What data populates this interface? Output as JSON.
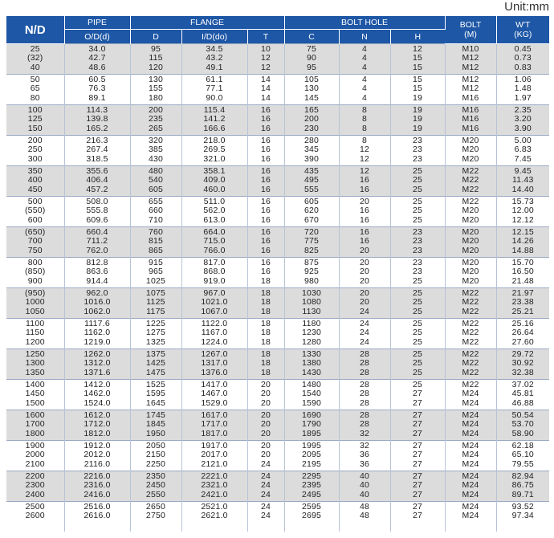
{
  "unit_label": "Unit:mm",
  "header": {
    "nd": "N/D",
    "pipe": "PIPE",
    "flange": "FLANGE",
    "bolt_hole": "BOLT HOLE",
    "bolt": "BOLT\n(M)",
    "weight": "W'T\n(KG)",
    "od": "O/D(d)",
    "d": "D",
    "id": "I/D(do)",
    "t": "T",
    "c": "C",
    "n": "N",
    "h": "H"
  },
  "groups": [
    {
      "nd": "25\n(32)\n40",
      "od": "34.0\n42.7\n48.6",
      "D": "95\n115\n120",
      "id": "34.5\n43.2\n49.1",
      "T": "10\n12\n12",
      "C": "75\n90\n95",
      "N": "4\n4\n4",
      "H": "12\n15\n15",
      "bolt": "M10\nM12\nM12",
      "wt": "0.45\n0.73\n0.83"
    },
    {
      "nd": "50\n65\n80",
      "od": "60.5\n76.3\n89.1",
      "D": "130\n155\n180",
      "id": "61.1\n77.1\n90.0",
      "T": "14\n14\n14",
      "C": "105\n130\n145",
      "N": "4\n4\n4",
      "H": "15\n15\n19",
      "bolt": "M12\nM12\nM16",
      "wt": "1.06\n1.48\n1.97"
    },
    {
      "nd": "100\n125\n150",
      "od": "114.3\n139.8\n165.2",
      "D": "200\n235\n265",
      "id": "115.4\n141.2\n166.6",
      "T": "16\n16\n16",
      "C": "165\n200\n230",
      "N": "8\n8\n8",
      "H": "19\n19\n19",
      "bolt": "M16\nM16\nM16",
      "wt": "2.35\n3.20\n3.90"
    },
    {
      "nd": "200\n250\n300",
      "od": "216.3\n267.4\n318.5",
      "D": "320\n385\n430",
      "id": "218.0\n269.5\n321.0",
      "T": "16\n16\n16",
      "C": "280\n345\n390",
      "N": "8\n12\n12",
      "H": "23\n23\n23",
      "bolt": "M20\nM20\nM20",
      "wt": "5.00\n6.83\n7.45"
    },
    {
      "nd": "350\n400\n450",
      "od": "355.6\n406.4\n457.2",
      "D": "480\n540\n605",
      "id": "358.1\n409.0\n460.0",
      "T": "16\n16\n16",
      "C": "435\n495\n555",
      "N": "12\n16\n16",
      "H": "25\n25\n25",
      "bolt": "M22\nM22\nM22",
      "wt": "9.45\n11.43\n14.40"
    },
    {
      "nd": "500\n(550)\n600",
      "od": "508.0\n555.8\n609.6",
      "D": "655\n660\n710",
      "id": "511.0\n562.0\n613.0",
      "T": "16\n16\n16",
      "C": "605\n620\n670",
      "N": "20\n16\n16",
      "H": "25\n25\n25",
      "bolt": "M22\nM20\nM20",
      "wt": "15.73\n12.00\n12.12"
    },
    {
      "nd": "(650)\n700\n750",
      "od": "660.4\n711.2\n762.0",
      "D": "760\n815\n865",
      "id": "664.0\n715.0\n766.0",
      "T": "16\n16\n16",
      "C": "720\n775\n825",
      "N": "16\n16\n20",
      "H": "23\n23\n23",
      "bolt": "M20\nM20\nM20",
      "wt": "12.15\n14.26\n14.88"
    },
    {
      "nd": "800\n(850)\n900",
      "od": "812.8\n863.6\n914.4",
      "D": "915\n965\n1025",
      "id": "817.0\n868.0\n919.0",
      "T": "16\n16\n18",
      "C": "875\n925\n980",
      "N": "20\n20\n20",
      "H": "23\n23\n25",
      "bolt": "M20\nM20\nM20",
      "wt": "15.70\n16.50\n21.48"
    },
    {
      "nd": "(950)\n1000\n1050",
      "od": "962.0\n1016.0\n1062.0",
      "D": "1075\n1125\n1175",
      "id": "967.0\n1021.0\n1067.0",
      "T": "18\n18\n18",
      "C": "1030\n1080\n1130",
      "N": "20\n20\n24",
      "H": "25\n25\n25",
      "bolt": "M22\nM22\nM22",
      "wt": "21.97\n23.38\n25.21"
    },
    {
      "nd": "1100\n1150\n1200",
      "od": "1117.6\n1162.0\n1219.0",
      "D": "1225\n1275\n1325",
      "id": "1122.0\n1167.0\n1224.0",
      "T": "18\n18\n18",
      "C": "1180\n1230\n1280",
      "N": "24\n24\n24",
      "H": "25\n25\n25",
      "bolt": "M22\nM22\nM22",
      "wt": "25.16\n26.64\n27.60"
    },
    {
      "nd": "1250\n1300\n1350",
      "od": "1262.0\n1312.0\n1371.6",
      "D": "1375\n1425\n1475",
      "id": "1267.0\n1317.0\n1376.0",
      "T": "18\n18\n18",
      "C": "1330\n1380\n1430",
      "N": "28\n28\n28",
      "H": "25\n25\n25",
      "bolt": "M22\nM22\nM22",
      "wt": "29.72\n30.92\n32.38"
    },
    {
      "nd": "1400\n1450\n1500",
      "od": "1412.0\n1462.0\n1524.0",
      "D": "1525\n1595\n1645",
      "id": "1417.0\n1467.0\n1529.0",
      "T": "20\n20\n20",
      "C": "1480\n1540\n1590",
      "N": "28\n28\n28",
      "H": "25\n27\n27",
      "bolt": "M22\nM24\nM24",
      "wt": "37.02\n45.81\n46.88"
    },
    {
      "nd": "1600\n1700\n1800",
      "od": "1612.0\n1712.0\n1812.0",
      "D": "1745\n1845\n1950",
      "id": "1617.0\n1717.0\n1817.0",
      "T": "20\n20\n20",
      "C": "1690\n1790\n1895",
      "N": "28\n28\n32",
      "H": "27\n27\n27",
      "bolt": "M24\nM24\nM24",
      "wt": "50.54\n53.70\n58.90"
    },
    {
      "nd": "1900\n2000\n2100",
      "od": "1912.0\n2012.0\n2116.0",
      "D": "2050\n2150\n2250",
      "id": "1917.0\n2017.0\n2121.0",
      "T": "20\n20\n24",
      "C": "1995\n2095\n2195",
      "N": "32\n36\n36",
      "H": "27\n27\n27",
      "bolt": "M24\nM24\nM24",
      "wt": "62.18\n65.10\n79.55"
    },
    {
      "nd": "2200\n2300\n2400",
      "od": "2216.0\n2316.0\n2416.0",
      "D": "2350\n2450\n2550",
      "id": "2221.0\n2321.0\n2421.0",
      "T": "24\n24\n24",
      "C": "2295\n2395\n2495",
      "N": "40\n40\n40",
      "H": "27\n27\n27",
      "bolt": "M24\nM24\nM24",
      "wt": "82.94\n86.75\n89.71"
    },
    {
      "nd": "2500\n2600",
      "od": "2516.0\n2616.0",
      "D": "2650\n2750",
      "id": "2521.0\n2621.0",
      "T": "24\n24",
      "C": "2595\n2695",
      "N": "48\n48",
      "H": "27\n27",
      "bolt": "M24\nM24",
      "wt": "93.52\n97.34"
    }
  ]
}
